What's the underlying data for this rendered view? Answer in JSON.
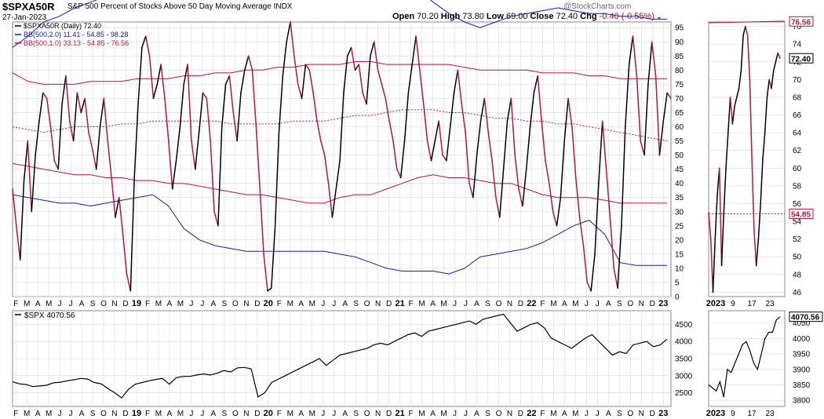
{
  "header": {
    "symbol": "$SPXA50R",
    "description": "S&P 500 Percent of Stocks Above 50 Day Moving Average",
    "exchange": "INDX",
    "date": "27-Jan-2023",
    "watermark": "@StockCharts.com",
    "open_label": "Open",
    "open": "70.20",
    "high_label": "High",
    "high": "73.80",
    "low_label": "Low",
    "low": "69.00",
    "close_label": "Close",
    "close": "72.40",
    "chg_label": "Chg",
    "chg": "-0.40 (-0.55%)"
  },
  "colors": {
    "price": "#000000",
    "bb2": "#1a1aa6",
    "bb1": "#b8143c",
    "grid": "#d9d9d9",
    "up": "#000000",
    "down": "#b8143c"
  },
  "chart_data": [
    {
      "type": "line",
      "title": "$SPXA50R (Daily) 72.40",
      "x_tick_labels": [
        "F",
        "M",
        "A",
        "M",
        "J",
        "J",
        "A",
        "S",
        "O",
        "N",
        "D",
        "19",
        "F",
        "M",
        "A",
        "M",
        "J",
        "J",
        "A",
        "S",
        "O",
        "N",
        "D",
        "20",
        "F",
        "M",
        "A",
        "M",
        "J",
        "J",
        "A",
        "S",
        "O",
        "N",
        "D",
        "21",
        "F",
        "M",
        "A",
        "M",
        "J",
        "J",
        "A",
        "S",
        "O",
        "N",
        "D",
        "22",
        "F",
        "M",
        "A",
        "M",
        "J",
        "J",
        "A",
        "S",
        "O",
        "N",
        "D",
        "23"
      ],
      "ylim": [
        0,
        97
      ],
      "y_ticks": [
        0,
        5,
        10,
        15,
        20,
        25,
        30,
        35,
        40,
        45,
        50,
        55,
        60,
        65,
        70,
        75,
        80,
        85,
        90,
        95
      ],
      "grid": true,
      "legend_position": "top-left",
      "series": [
        {
          "name": "$SPXA50R (Daily) 72.40",
          "color": "#000000",
          "style": "updown",
          "values": [
            38,
            25,
            13,
            41,
            55,
            30,
            50,
            62,
            72,
            70,
            60,
            48,
            45,
            68,
            78,
            62,
            55,
            72,
            65,
            70,
            58,
            52,
            45,
            60,
            70,
            55,
            42,
            28,
            35,
            22,
            8,
            2,
            42,
            68,
            88,
            92,
            85,
            70,
            75,
            82,
            70,
            55,
            38,
            48,
            60,
            75,
            82,
            55,
            45,
            58,
            72,
            70,
            55,
            30,
            25,
            60,
            75,
            78,
            65,
            55,
            72,
            80,
            85,
            80,
            60,
            38,
            15,
            2,
            3,
            25,
            58,
            78,
            90,
            97,
            85,
            75,
            70,
            82,
            80,
            72,
            62,
            55,
            50,
            40,
            28,
            38,
            48,
            72,
            85,
            88,
            80,
            82,
            72,
            68,
            85,
            90,
            80,
            75,
            70,
            62,
            55,
            45,
            42,
            55,
            72,
            82,
            92,
            80,
            68,
            55,
            48,
            55,
            62,
            50,
            48,
            60,
            72,
            80,
            68,
            58,
            40,
            35,
            50,
            62,
            70,
            58,
            48,
            35,
            28,
            45,
            62,
            70,
            50,
            38,
            32,
            45,
            60,
            72,
            78,
            62,
            48,
            40,
            30,
            25,
            35,
            55,
            70,
            60,
            42,
            28,
            18,
            5,
            2,
            15,
            40,
            62,
            45,
            28,
            10,
            3,
            25,
            60,
            82,
            92,
            78,
            55,
            50,
            75,
            90,
            78,
            50,
            62,
            72,
            70
          ]
        },
        {
          "name": "BB(500,2.0) 11.41 - 54.85 - 98.28",
          "color": "#1a1aa6",
          "upper": [
            88,
            92,
            97,
            99,
            102,
            104,
            106,
            108,
            110,
            112,
            114,
            116,
            118,
            121,
            123,
            124,
            125,
            125,
            124,
            122,
            120,
            118,
            116,
            114,
            112,
            110,
            108,
            104,
            100,
            97,
            95,
            97,
            99,
            100,
            101,
            102,
            101,
            100,
            100,
            99,
            99,
            98,
            98
          ],
          "lower": [
            36,
            35,
            34,
            33,
            33,
            32,
            33,
            34,
            35,
            36,
            32,
            24,
            20,
            18,
            17,
            16,
            16,
            16,
            16,
            16,
            16,
            15,
            14,
            12,
            10,
            9,
            9,
            9,
            8,
            10,
            14,
            15,
            16,
            17,
            19,
            22,
            25,
            27,
            22,
            12,
            11,
            11,
            11
          ]
        },
        {
          "name": "BB(500,1.0) 33.13 - 54.85 - 76.56",
          "color": "#b8143c",
          "upper": [
            79,
            76,
            75,
            75,
            75,
            76,
            76,
            76,
            77,
            77,
            77,
            78,
            78,
            79,
            79,
            80,
            80,
            81,
            81,
            82,
            82,
            82,
            83,
            83,
            82,
            82,
            82,
            82,
            82,
            81,
            80,
            80,
            80,
            80,
            79,
            79,
            79,
            78,
            78,
            77,
            77,
            77,
            77
          ],
          "middle": [
            60,
            59,
            58,
            59,
            60,
            60,
            60,
            61,
            61,
            62,
            62,
            62,
            62,
            62,
            61,
            61,
            61,
            61,
            62,
            62,
            62,
            63,
            64,
            64,
            65,
            66,
            66,
            66,
            65,
            65,
            64,
            63,
            63,
            62,
            62,
            61,
            61,
            60,
            59,
            58,
            57,
            56,
            55
          ],
          "lower": [
            47,
            46,
            45,
            44,
            43,
            43,
            42,
            42,
            41,
            41,
            40,
            40,
            39,
            38,
            37,
            36,
            36,
            35,
            34,
            33,
            33,
            35,
            36,
            36,
            38,
            40,
            42,
            43,
            42,
            42,
            41,
            40,
            40,
            38,
            36,
            35,
            35,
            35,
            34,
            33,
            33,
            33,
            33
          ]
        }
      ]
    },
    {
      "type": "line",
      "title": "$SPX 4070.56",
      "ylim": [
        2100,
        4900
      ],
      "y_ticks": [
        2500,
        3000,
        3500,
        4000,
        4500
      ],
      "grid": true,
      "series": [
        {
          "name": "$SPX 4070.56",
          "color": "#000000",
          "values": [
            2820,
            2760,
            2740,
            2680,
            2700,
            2720,
            2790,
            2810,
            2850,
            2880,
            2920,
            2900,
            2800,
            2760,
            2620,
            2500,
            2350,
            2600,
            2750,
            2800,
            2850,
            2890,
            2920,
            2750,
            2940,
            2980,
            2980,
            3020,
            3050,
            3020,
            3070,
            3150,
            3110,
            3230,
            3240,
            3200,
            2380,
            2500,
            2800,
            2900,
            3000,
            3100,
            3200,
            3300,
            3400,
            3500,
            3300,
            3450,
            3600,
            3650,
            3700,
            3750,
            3800,
            3900,
            3950,
            3900,
            4000,
            4100,
            4200,
            4250,
            4150,
            4300,
            4350,
            4400,
            4450,
            4500,
            4550,
            4600,
            4500,
            4650,
            4700,
            4750,
            4800,
            4550,
            4300,
            4400,
            4500,
            4550,
            4400,
            4100,
            4000,
            3900,
            3800,
            3950,
            4100,
            4200,
            4000,
            3800,
            3600,
            3700,
            3650,
            3900,
            3950,
            4000,
            3850,
            3900,
            4070
          ]
        }
      ]
    },
    {
      "type": "line",
      "title": "2023 inset",
      "x_tick_labels": [
        "2023",
        "9",
        "17",
        "23"
      ],
      "ylim": [
        45.5,
        76.5
      ],
      "y_ticks": [
        46,
        48,
        50,
        52,
        54,
        56,
        58,
        60,
        62,
        64,
        66,
        68,
        70,
        72,
        74,
        76
      ],
      "series": [
        {
          "name": "$SPXA50R",
          "values": [
            55,
            52,
            46,
            52,
            57,
            60,
            49,
            55,
            60,
            64,
            68,
            65,
            67,
            68,
            69,
            71,
            75,
            76,
            75,
            70,
            61,
            53,
            49,
            52,
            56,
            61,
            64,
            68,
            70,
            69,
            71,
            72,
            73,
            72.4
          ]
        },
        {
          "name": "BB upper",
          "values": [
            76.56
          ]
        },
        {
          "name": "BB middle",
          "values": [
            54.85
          ]
        }
      ],
      "price_label": "72.40",
      "upper_label": "76.56",
      "middle_label": "54.85"
    },
    {
      "type": "line",
      "title": "$SPX 2023 inset",
      "ylim": [
        3780,
        4090
      ],
      "y_ticks": [
        3800,
        3850,
        3900,
        3950,
        4000,
        4050
      ],
      "series": [
        {
          "name": "$SPX",
          "values": [
            3850,
            3840,
            3830,
            3860,
            3810,
            3900,
            3890,
            3920,
            3950,
            3980,
            3990,
            3960,
            3920,
            3900,
            3950,
            4000,
            4020,
            4020,
            4060,
            4070.56
          ]
        }
      ],
      "price_label": "4070.56"
    }
  ]
}
